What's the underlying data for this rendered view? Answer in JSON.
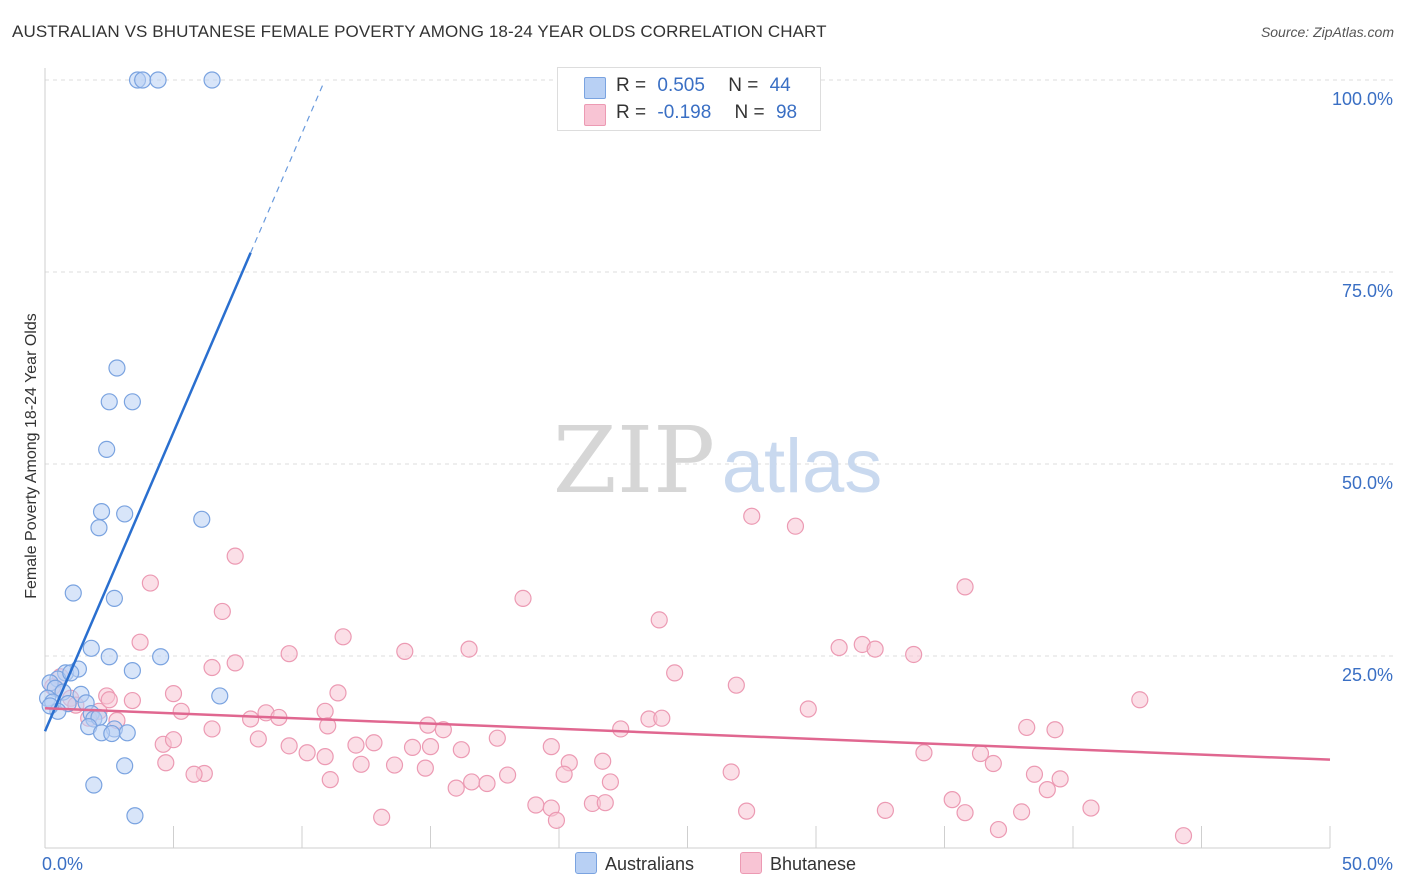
{
  "title": "AUSTRALIAN VS BHUTANESE FEMALE POVERTY AMONG 18-24 YEAR OLDS CORRELATION CHART",
  "source": "Source: ZipAtlas.com",
  "watermark": {
    "zip": "ZIP",
    "atlas": "atlas"
  },
  "legend": {
    "r_label": "R =",
    "n_label": "N =",
    "series": [
      {
        "name": "Australians",
        "r": "0.505",
        "n": "44",
        "fill": "#b8d0f4",
        "stroke": "#7aa3e0"
      },
      {
        "name": "Bhutanese",
        "r": "-0.198",
        "n": "98",
        "fill": "#f8c4d4",
        "stroke": "#ec9ab3"
      }
    ]
  },
  "colors": {
    "blue_line": "#2a6fcf",
    "pink_line": "#e06790",
    "axis_text": "#3a6fc4",
    "grid": "#dddddd"
  },
  "chart_data": {
    "type": "scatter",
    "title": "AUSTRALIAN VS BHUTANESE FEMALE POVERTY AMONG 18-24 YEAR OLDS CORRELATION CHART",
    "xlabel": "",
    "ylabel": "Female Poverty Among 18-24 Year Olds",
    "xlim": [
      0,
      50
    ],
    "ylim": [
      0,
      100
    ],
    "x_tick_labels": [
      "0.0%",
      "50.0%"
    ],
    "y_ticks": [
      25,
      50,
      75,
      100
    ],
    "y_tick_labels": [
      "25.0%",
      "50.0%",
      "75.0%",
      "100.0%"
    ],
    "grid": true,
    "series": [
      {
        "name": "Australians",
        "r": 0.505,
        "n": 44,
        "trend": {
          "x0": 0,
          "y0": 15.2,
          "x1": 8.0,
          "y1": 77.5,
          "dashed_to_x": 10.8
        },
        "points": [
          [
            3.6,
            100
          ],
          [
            3.8,
            100
          ],
          [
            4.4,
            100
          ],
          [
            6.5,
            100
          ],
          [
            2.8,
            62.5
          ],
          [
            2.5,
            58.1
          ],
          [
            3.4,
            58.1
          ],
          [
            2.4,
            51.9
          ],
          [
            2.2,
            43.8
          ],
          [
            3.1,
            43.5
          ],
          [
            6.1,
            42.8
          ],
          [
            2.1,
            41.7
          ],
          [
            1.1,
            33.2
          ],
          [
            2.7,
            32.5
          ],
          [
            1.8,
            26.0
          ],
          [
            2.5,
            24.9
          ],
          [
            4.5,
            24.9
          ],
          [
            3.4,
            23.1
          ],
          [
            0.8,
            22.8
          ],
          [
            1.3,
            23.3
          ],
          [
            0.5,
            22.0
          ],
          [
            1.0,
            22.8
          ],
          [
            0.2,
            21.5
          ],
          [
            0.4,
            20.8
          ],
          [
            0.7,
            20.3
          ],
          [
            1.4,
            20.0
          ],
          [
            0.1,
            19.5
          ],
          [
            0.3,
            19.0
          ],
          [
            1.6,
            18.9
          ],
          [
            0.9,
            18.8
          ],
          [
            0.5,
            17.8
          ],
          [
            1.8,
            17.5
          ],
          [
            6.8,
            19.8
          ],
          [
            1.9,
            16.8
          ],
          [
            2.1,
            17.0
          ],
          [
            1.7,
            15.8
          ],
          [
            2.7,
            15.5
          ],
          [
            2.2,
            15.0
          ],
          [
            3.2,
            15.0
          ],
          [
            2.6,
            14.9
          ],
          [
            0.2,
            18.5
          ],
          [
            3.1,
            10.7
          ],
          [
            1.9,
            8.2
          ],
          [
            3.5,
            4.2
          ]
        ]
      },
      {
        "name": "Bhutanese",
        "r": -0.198,
        "n": 98,
        "trend": {
          "x0": 0,
          "y0": 18.2,
          "x1": 50,
          "y1": 11.5
        },
        "points": [
          [
            27.5,
            43.2
          ],
          [
            29.2,
            41.9
          ],
          [
            7.4,
            38.0
          ],
          [
            4.1,
            34.5
          ],
          [
            35.8,
            34.0
          ],
          [
            18.6,
            32.5
          ],
          [
            6.9,
            30.8
          ],
          [
            23.9,
            29.7
          ],
          [
            11.6,
            27.5
          ],
          [
            3.7,
            26.8
          ],
          [
            30.9,
            26.1
          ],
          [
            16.5,
            25.9
          ],
          [
            14.0,
            25.6
          ],
          [
            31.8,
            26.5
          ],
          [
            32.3,
            25.9
          ],
          [
            9.5,
            25.3
          ],
          [
            33.8,
            25.2
          ],
          [
            7.4,
            24.1
          ],
          [
            6.5,
            23.5
          ],
          [
            24.5,
            22.8
          ],
          [
            26.9,
            21.2
          ],
          [
            11.4,
            20.2
          ],
          [
            42.6,
            19.3
          ],
          [
            2.4,
            19.8
          ],
          [
            1.0,
            19.5
          ],
          [
            3.4,
            19.2
          ],
          [
            1.2,
            18.6
          ],
          [
            2.1,
            17.8
          ],
          [
            29.7,
            18.1
          ],
          [
            5.3,
            17.8
          ],
          [
            8.6,
            17.6
          ],
          [
            10.9,
            17.8
          ],
          [
            1.7,
            16.9
          ],
          [
            8.0,
            16.8
          ],
          [
            2.8,
            16.6
          ],
          [
            23.5,
            16.8
          ],
          [
            14.9,
            16.0
          ],
          [
            11.0,
            15.9
          ],
          [
            9.1,
            17.0
          ],
          [
            24.0,
            16.9
          ],
          [
            22.4,
            15.5
          ],
          [
            15.5,
            15.4
          ],
          [
            6.5,
            15.5
          ],
          [
            38.2,
            15.7
          ],
          [
            39.3,
            15.4
          ],
          [
            4.6,
            13.5
          ],
          [
            5.0,
            14.1
          ],
          [
            8.3,
            14.2
          ],
          [
            9.5,
            13.3
          ],
          [
            12.1,
            13.4
          ],
          [
            12.8,
            13.7
          ],
          [
            14.3,
            13.1
          ],
          [
            15.0,
            13.2
          ],
          [
            16.2,
            12.8
          ],
          [
            17.6,
            14.3
          ],
          [
            19.7,
            13.2
          ],
          [
            10.2,
            12.4
          ],
          [
            10.9,
            11.9
          ],
          [
            13.6,
            10.8
          ],
          [
            12.3,
            10.9
          ],
          [
            4.7,
            11.1
          ],
          [
            20.4,
            11.1
          ],
          [
            21.7,
            11.3
          ],
          [
            34.2,
            12.4
          ],
          [
            36.4,
            12.3
          ],
          [
            36.9,
            11.0
          ],
          [
            14.8,
            10.4
          ],
          [
            6.2,
            9.7
          ],
          [
            5.8,
            9.6
          ],
          [
            11.1,
            8.9
          ],
          [
            16.6,
            8.6
          ],
          [
            17.2,
            8.4
          ],
          [
            20.2,
            9.6
          ],
          [
            22.0,
            8.6
          ],
          [
            18.0,
            9.5
          ],
          [
            26.7,
            9.9
          ],
          [
            38.5,
            9.6
          ],
          [
            39.5,
            9.0
          ],
          [
            39.0,
            7.6
          ],
          [
            16.0,
            7.8
          ],
          [
            35.3,
            6.3
          ],
          [
            19.1,
            5.6
          ],
          [
            19.7,
            5.2
          ],
          [
            21.3,
            5.8
          ],
          [
            21.8,
            5.9
          ],
          [
            27.3,
            4.8
          ],
          [
            32.7,
            4.9
          ],
          [
            35.8,
            4.6
          ],
          [
            38.0,
            4.7
          ],
          [
            40.7,
            5.2
          ],
          [
            13.1,
            4.0
          ],
          [
            19.9,
            3.6
          ],
          [
            37.1,
            2.4
          ],
          [
            44.3,
            1.6
          ],
          [
            5.0,
            20.1
          ],
          [
            2.5,
            19.3
          ],
          [
            0.6,
            22.3
          ],
          [
            0.3,
            21.0
          ]
        ]
      }
    ]
  }
}
